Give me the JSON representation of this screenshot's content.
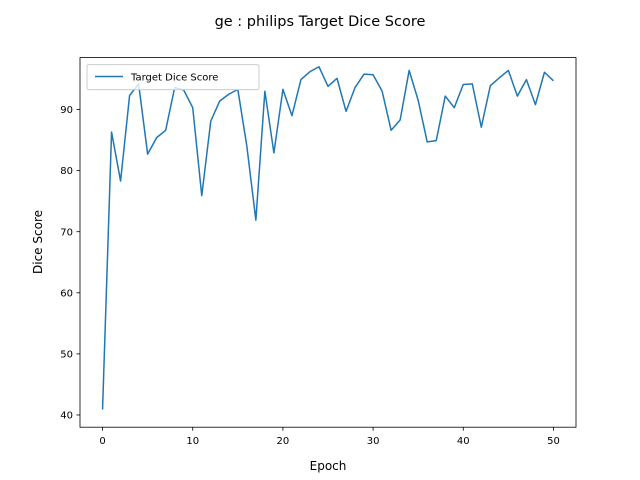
{
  "chart_data": {
    "type": "line",
    "title": "ge : philips Target Dice Score",
    "xlabel": "Epoch",
    "ylabel": "Dice Score",
    "xlim": [
      -2.5,
      52.5
    ],
    "ylim": [
      38.0,
      98.5
    ],
    "xticks": [
      0,
      10,
      20,
      30,
      40,
      50
    ],
    "yticks": [
      40,
      50,
      60,
      70,
      80,
      90
    ],
    "grid": false,
    "legend_position": "upper left",
    "colors": {
      "series": "#1f77b4"
    },
    "series": [
      {
        "name": "Target Dice Score",
        "x": [
          0,
          1,
          2,
          3,
          4,
          5,
          6,
          7,
          8,
          9,
          10,
          11,
          12,
          13,
          14,
          15,
          16,
          17,
          18,
          19,
          20,
          21,
          22,
          23,
          24,
          25,
          26,
          27,
          28,
          29,
          30,
          31,
          32,
          33,
          34,
          35,
          36,
          37,
          38,
          39,
          40,
          41,
          42,
          43,
          44,
          45,
          46,
          47,
          48,
          49,
          50
        ],
        "values": [
          40.9,
          86.3,
          78.3,
          92.3,
          94.2,
          82.7,
          85.4,
          86.6,
          93.6,
          93.2,
          90.3,
          75.9,
          88.1,
          91.4,
          92.5,
          93.3,
          84.0,
          71.9,
          93.0,
          82.9,
          93.3,
          89.0,
          94.9,
          96.2,
          97.0,
          93.8,
          95.1,
          89.7,
          93.6,
          95.8,
          95.7,
          93.0,
          86.6,
          88.3,
          96.4,
          91.5,
          84.7,
          84.9,
          92.2,
          90.3,
          94.1,
          94.2,
          87.1,
          93.9,
          95.2,
          96.4,
          92.2,
          94.9,
          90.8,
          96.1,
          94.7
        ]
      }
    ]
  }
}
